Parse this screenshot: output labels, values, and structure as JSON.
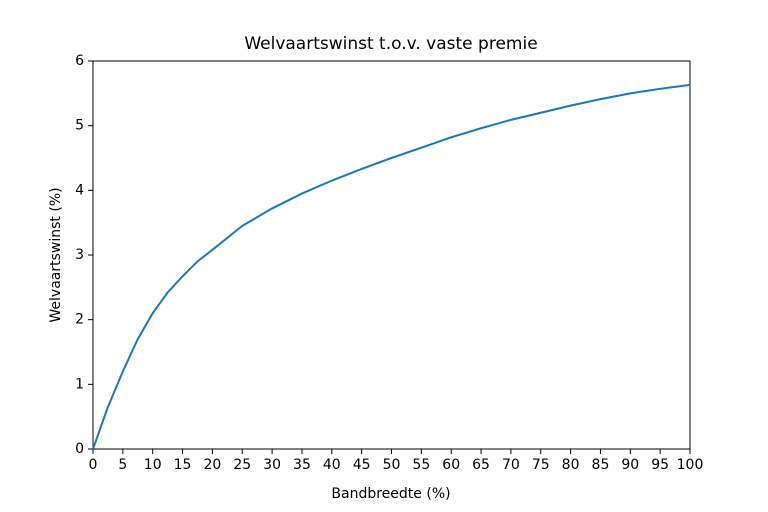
{
  "chart_data": {
    "type": "line",
    "title": "Welvaartswinst t.o.v. vaste premie",
    "x_label": "Bandbreedte (%)",
    "y_label": "Welvaartswinst (%)",
    "x": [
      0,
      2.5,
      5,
      7.5,
      10,
      12.5,
      15,
      17.5,
      20,
      25,
      30,
      35,
      40,
      45,
      50,
      55,
      60,
      65,
      70,
      75,
      80,
      85,
      90,
      95,
      100
    ],
    "series": [
      {
        "name": "Welvaartswinst",
        "color": "#1f77b4",
        "values": [
          0,
          0.65,
          1.2,
          1.7,
          2.1,
          2.42,
          2.67,
          2.9,
          3.08,
          3.45,
          3.72,
          3.95,
          4.15,
          4.33,
          4.5,
          4.66,
          4.82,
          4.96,
          5.09,
          5.2,
          5.31,
          5.41,
          5.5,
          5.57,
          5.63
        ]
      }
    ],
    "xlim": [
      0,
      100
    ],
    "ylim": [
      0,
      6
    ],
    "xticks": [
      0,
      5,
      10,
      15,
      20,
      25,
      30,
      35,
      40,
      45,
      50,
      55,
      60,
      65,
      70,
      75,
      80,
      85,
      90,
      95,
      100
    ],
    "yticks": [
      0,
      1,
      2,
      3,
      4,
      5,
      6
    ],
    "grid": false
  }
}
